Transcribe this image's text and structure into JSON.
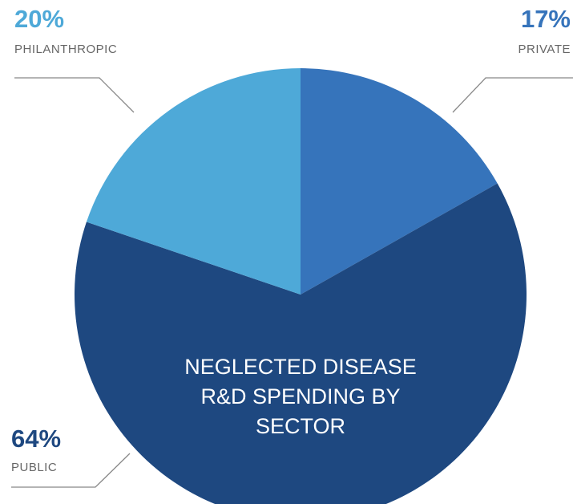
{
  "chart_data": {
    "type": "pie",
    "title_lines": [
      "NEGLECTED DISEASE",
      "R&D SPENDING BY",
      "SECTOR"
    ],
    "slices": [
      {
        "label": "PRIVATE",
        "value": 17,
        "value_label": "17%",
        "color": "#3674bb",
        "label_color": "#3674bb"
      },
      {
        "label": "PUBLIC",
        "value": 64,
        "value_label": "64%",
        "color": "#1e4880",
        "label_color": "#1e4880"
      },
      {
        "label": "PHILANTHROPIC",
        "value": 20,
        "value_label": "20%",
        "color": "#4ea9d8",
        "label_color": "#4ea9d8"
      }
    ]
  }
}
